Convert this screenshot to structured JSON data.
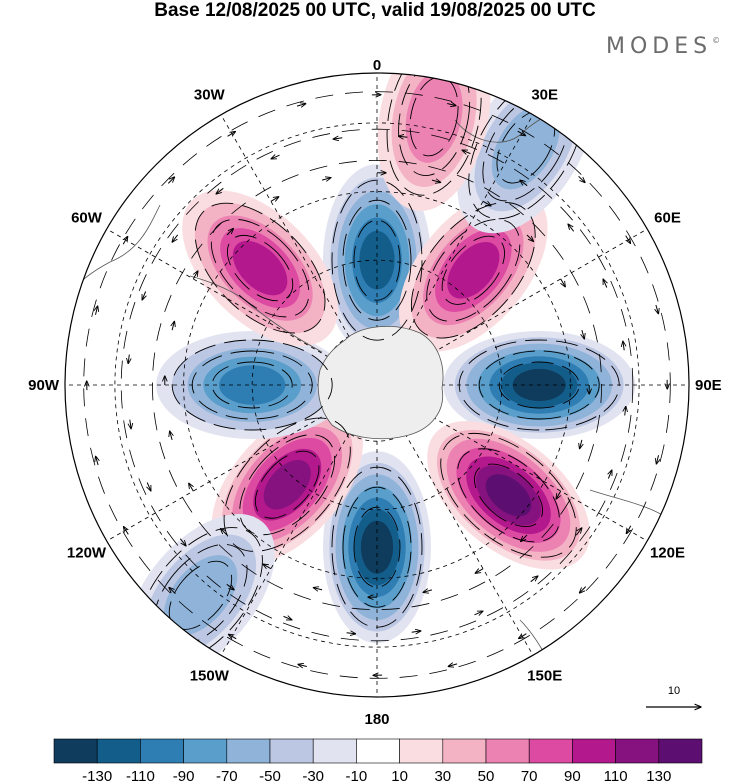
{
  "title": "Base 12/08/2025 00 UTC, valid 19/08/2025 00 UTC",
  "brand": "MODES",
  "brand_mark": "©",
  "projection": "south-polar-stereographic",
  "longitude_labels": [
    {
      "id": "0",
      "text": "0"
    },
    {
      "id": "30E",
      "text": "30E"
    },
    {
      "id": "60E",
      "text": "60E"
    },
    {
      "id": "90E",
      "text": "90E"
    },
    {
      "id": "120E",
      "text": "120E"
    },
    {
      "id": "150E",
      "text": "150E"
    },
    {
      "id": "180",
      "text": "180"
    },
    {
      "id": "150W",
      "text": "150W"
    },
    {
      "id": "120W",
      "text": "120W"
    },
    {
      "id": "90W",
      "text": "90W"
    },
    {
      "id": "60W",
      "text": "60W"
    },
    {
      "id": "30W",
      "text": "30W"
    }
  ],
  "reference_vector": {
    "value": "10",
    "icon": "arrow-right-icon"
  },
  "colorbar": {
    "boundaries": [
      "-130",
      "-110",
      "-90",
      "-70",
      "-50",
      "-30",
      "-10",
      "10",
      "30",
      "50",
      "70",
      "90",
      "110",
      "130"
    ],
    "colors": [
      "#0f3b5c",
      "#135d8a",
      "#2e7db3",
      "#5a9ecb",
      "#8fb3d9",
      "#bcc7e3",
      "#e2e3f1",
      "#ffffff",
      "#fadde1",
      "#f3b3c5",
      "#ec82b2",
      "#dd4aa2",
      "#b3198c",
      "#86127f",
      "#5c0f70"
    ]
  },
  "anomalies": [
    {
      "name": "neg-0",
      "lon": 0,
      "r": 0.4,
      "value": -120
    },
    {
      "name": "pos-40E",
      "lon": 40,
      "r": 0.48,
      "value": 110
    },
    {
      "name": "neg-90E",
      "lon": 90,
      "r": 0.52,
      "value": -140
    },
    {
      "name": "pos-130E",
      "lon": 130,
      "r": 0.55,
      "value": 140
    },
    {
      "name": "neg-180",
      "lon": 180,
      "r": 0.52,
      "value": -150
    },
    {
      "name": "pos-138W",
      "lon": -138,
      "r": 0.43,
      "value": 130
    },
    {
      "name": "neg-90W",
      "lon": -90,
      "r": 0.4,
      "value": -110
    },
    {
      "name": "pos-45W",
      "lon": -45,
      "r": 0.53,
      "value": 110
    },
    {
      "name": "neg-30E",
      "lon": 32,
      "r": 0.9,
      "value": -60
    },
    {
      "name": "neg-140W",
      "lon": -140,
      "r": 0.88,
      "value": -55
    },
    {
      "name": "pos-15E",
      "lon": 12,
      "r": 0.88,
      "value": 70
    }
  ]
}
